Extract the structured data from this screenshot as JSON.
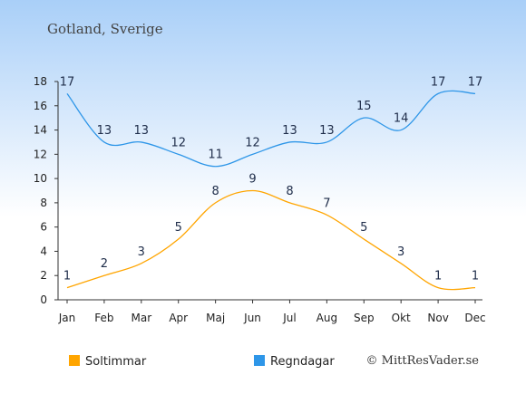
{
  "chart_data": {
    "type": "line",
    "title": "Gotland, Sverige",
    "categories": [
      "Jan",
      "Feb",
      "Mar",
      "Apr",
      "Maj",
      "Jun",
      "Jul",
      "Aug",
      "Sep",
      "Okt",
      "Nov",
      "Dec"
    ],
    "y_ticks": [
      0,
      2,
      4,
      6,
      8,
      10,
      12,
      14,
      16,
      18
    ],
    "ylim": [
      0,
      18
    ],
    "grid": false,
    "legend_position": "bottom-left",
    "series": [
      {
        "name": "Soltimmar",
        "color": "#ffa500",
        "values": [
          1,
          2,
          3,
          5,
          8,
          9,
          8,
          7,
          5,
          3,
          1,
          1
        ]
      },
      {
        "name": "Regndagar",
        "color": "#2e96e8",
        "values": [
          17,
          13,
          13,
          12,
          11,
          12,
          13,
          13,
          15,
          14,
          17,
          17
        ]
      }
    ],
    "credit": "© MittResVader.se"
  }
}
